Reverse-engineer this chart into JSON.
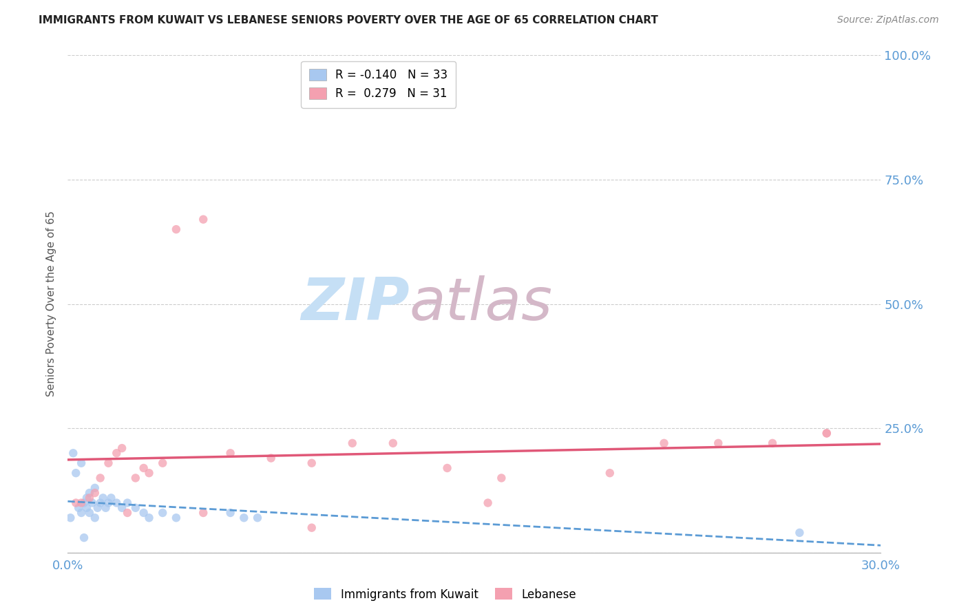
{
  "title": "IMMIGRANTS FROM KUWAIT VS LEBANESE SENIORS POVERTY OVER THE AGE OF 65 CORRELATION CHART",
  "source": "Source: ZipAtlas.com",
  "ylabel": "Seniors Poverty Over the Age of 65",
  "xlim": [
    0.0,
    0.3
  ],
  "ylim": [
    0.0,
    1.0
  ],
  "ytick_vals": [
    0.0,
    0.25,
    0.5,
    0.75,
    1.0
  ],
  "ytick_right_labels": [
    "",
    "25.0%",
    "50.0%",
    "75.0%",
    "100.0%"
  ],
  "xtick_vals": [
    0.0,
    0.03,
    0.06,
    0.09,
    0.12,
    0.15,
    0.18,
    0.21,
    0.24,
    0.27,
    0.3
  ],
  "kuwait_R": -0.14,
  "kuwait_N": 33,
  "lebanese_R": 0.279,
  "lebanese_N": 31,
  "kuwait_color": "#a8c8f0",
  "lebanese_color": "#f4a0b0",
  "kuwait_line_color": "#5b9bd5",
  "lebanese_line_color": "#e05878",
  "kuwait_x": [
    0.001,
    0.002,
    0.003,
    0.004,
    0.005,
    0.005,
    0.006,
    0.006,
    0.007,
    0.007,
    0.008,
    0.008,
    0.009,
    0.01,
    0.01,
    0.011,
    0.012,
    0.013,
    0.014,
    0.015,
    0.016,
    0.018,
    0.02,
    0.022,
    0.025,
    0.028,
    0.03,
    0.035,
    0.04,
    0.06,
    0.065,
    0.07,
    0.27
  ],
  "kuwait_y": [
    0.07,
    0.2,
    0.16,
    0.09,
    0.08,
    0.18,
    0.1,
    0.03,
    0.11,
    0.09,
    0.12,
    0.08,
    0.1,
    0.13,
    0.07,
    0.09,
    0.1,
    0.11,
    0.09,
    0.1,
    0.11,
    0.1,
    0.09,
    0.1,
    0.09,
    0.08,
    0.07,
    0.08,
    0.07,
    0.08,
    0.07,
    0.07,
    0.04
  ],
  "lebanese_x": [
    0.003,
    0.005,
    0.008,
    0.01,
    0.012,
    0.015,
    0.018,
    0.02,
    0.022,
    0.025,
    0.028,
    0.03,
    0.035,
    0.04,
    0.05,
    0.06,
    0.075,
    0.09,
    0.105,
    0.12,
    0.14,
    0.16,
    0.2,
    0.24,
    0.26,
    0.28,
    0.05,
    0.09,
    0.155,
    0.22,
    0.28
  ],
  "lebanese_y": [
    0.1,
    0.1,
    0.11,
    0.12,
    0.15,
    0.18,
    0.2,
    0.21,
    0.08,
    0.15,
    0.17,
    0.16,
    0.18,
    0.65,
    0.67,
    0.2,
    0.19,
    0.18,
    0.22,
    0.22,
    0.17,
    0.15,
    0.16,
    0.22,
    0.22,
    0.24,
    0.08,
    0.05,
    0.1,
    0.22,
    0.24
  ],
  "watermark_zip": "ZIP",
  "watermark_atlas": "atlas",
  "watermark_color_zip": "#c5dff5",
  "watermark_color_atlas": "#d4b8c8",
  "background_color": "#ffffff",
  "grid_color": "#cccccc",
  "title_color": "#222222",
  "axis_label_color": "#555555",
  "right_axis_color": "#5b9bd5",
  "marker_size": 80
}
